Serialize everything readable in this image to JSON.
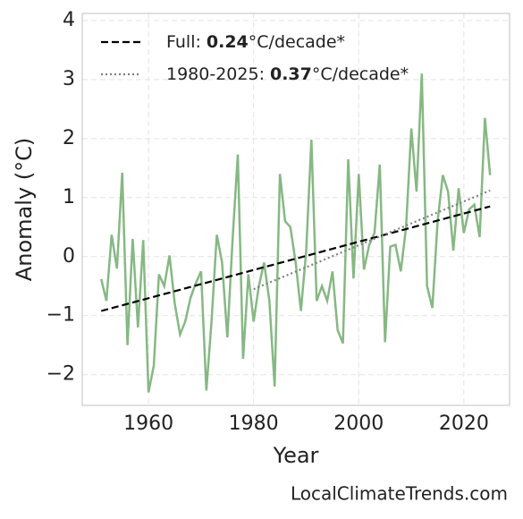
{
  "chart_data": {
    "type": "line",
    "xlabel": "Year",
    "ylabel": "Anomaly (°C)",
    "source": "LocalClimateTrends.com",
    "xlim": [
      1947.4,
      2028.7
    ],
    "ylim": [
      -2.52,
      4.12
    ],
    "xticks": [
      1960,
      1980,
      2000,
      2020
    ],
    "yticks": [
      {
        "value": -2,
        "label": "−2"
      },
      {
        "value": -1,
        "label": "−1"
      },
      0,
      1,
      2,
      3,
      4
    ],
    "grid": true,
    "legend": "upper left",
    "series": [
      {
        "color": "#86b883",
        "style": "solid",
        "x": [
          1951,
          1952,
          1953,
          1954,
          1955,
          1956,
          1957,
          1958,
          1959,
          1960,
          1961,
          1962,
          1963,
          1964,
          1965,
          1966,
          1967,
          1968,
          1969,
          1970,
          1971,
          1972,
          1973,
          1974,
          1975,
          1976,
          1977,
          1978,
          1979,
          1980,
          1981,
          1982,
          1983,
          1984,
          1985,
          1986,
          1987,
          1988,
          1989,
          1990,
          1991,
          1992,
          1993,
          1994,
          1995,
          1996,
          1997,
          1998,
          1999,
          2000,
          2001,
          2002,
          2003,
          2004,
          2005,
          2006,
          2007,
          2008,
          2009,
          2010,
          2011,
          2012,
          2013,
          2014,
          2015,
          2016,
          2017,
          2018,
          2019,
          2020,
          2021,
          2022,
          2023,
          2024,
          2025
        ],
        "values": [
          -0.38,
          -0.75,
          0.37,
          -0.2,
          1.42,
          -1.5,
          0.3,
          -1.2,
          0.28,
          -2.3,
          -1.85,
          -0.3,
          -0.5,
          0.02,
          -0.8,
          -1.32,
          -1.1,
          -0.7,
          -0.45,
          -0.25,
          -2.27,
          -1.1,
          0.37,
          -0.1,
          -1.37,
          0.3,
          1.73,
          -1.73,
          -0.3,
          -1.1,
          -0.5,
          -0.1,
          -0.75,
          -2.2,
          1.4,
          0.6,
          0.5,
          -0.1,
          -0.92,
          0.1,
          1.98,
          -0.75,
          -0.5,
          -0.75,
          -0.25,
          -1.25,
          -1.47,
          1.65,
          -0.37,
          1.4,
          -0.22,
          0.2,
          0.4,
          1.56,
          -1.45,
          0.17,
          0.2,
          -0.25,
          0.5,
          2.17,
          1.1,
          3.1,
          -0.5,
          -0.87,
          0.6,
          1.38,
          1.1,
          0.1,
          1.16,
          0.4,
          0.8,
          0.88,
          0.33,
          2.35,
          1.38
        ]
      },
      {
        "name": "Full:",
        "rate": 0.24,
        "unit": "°C/decade*",
        "color": "#000000",
        "style": "dashed",
        "x": [
          1951,
          2025
        ],
        "values": [
          -0.92,
          0.85
        ]
      },
      {
        "name": "1980-2025:",
        "rate": 0.37,
        "unit": "°C/decade*",
        "color": "#808080",
        "style": "dotted",
        "x": [
          1980,
          2025
        ],
        "values": [
          -0.55,
          1.12
        ]
      }
    ]
  }
}
